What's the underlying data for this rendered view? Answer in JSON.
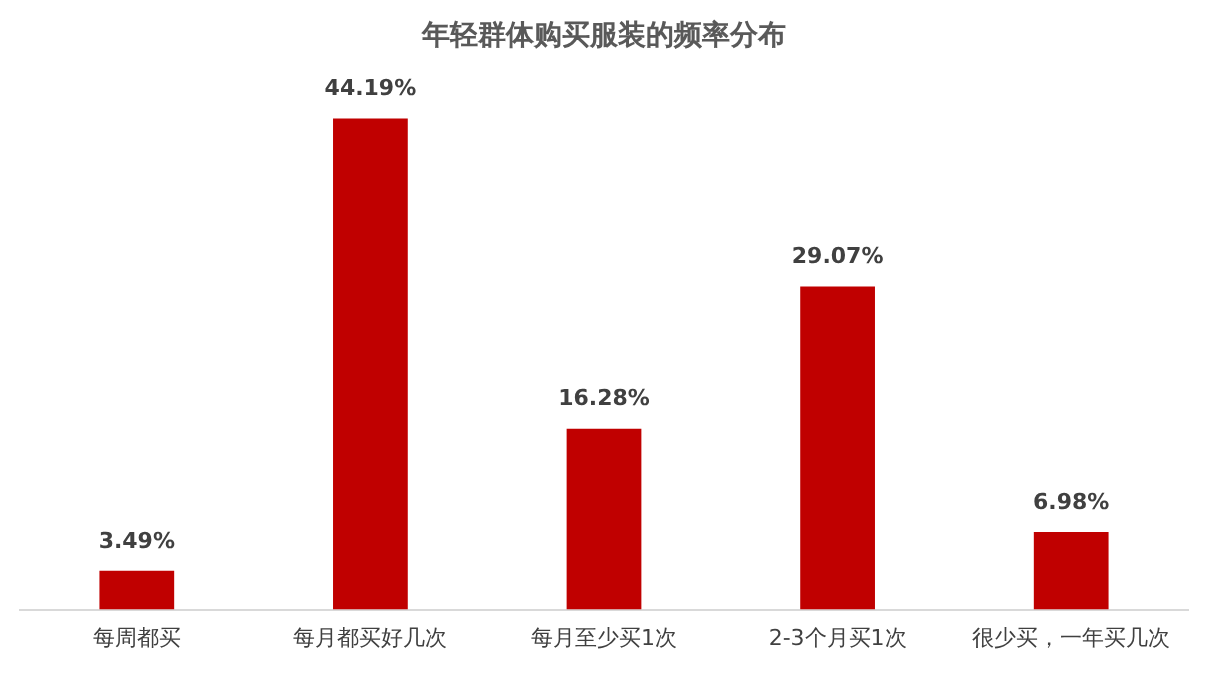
{
  "chart_data": {
    "type": "bar",
    "title": "年轻群体购买服装的频率分布",
    "categories": [
      "每周都买",
      "每月都买好几次",
      "每月至少买1次",
      "2-3个月买1次",
      "很少买，一年买几次"
    ],
    "values": [
      3.49,
      44.19,
      16.28,
      29.07,
      6.98
    ],
    "value_labels": [
      "3.49%",
      "44.19%",
      "16.28%",
      "29.07%",
      "6.98%"
    ],
    "color": "#c00000",
    "grid": false,
    "legend": false
  }
}
